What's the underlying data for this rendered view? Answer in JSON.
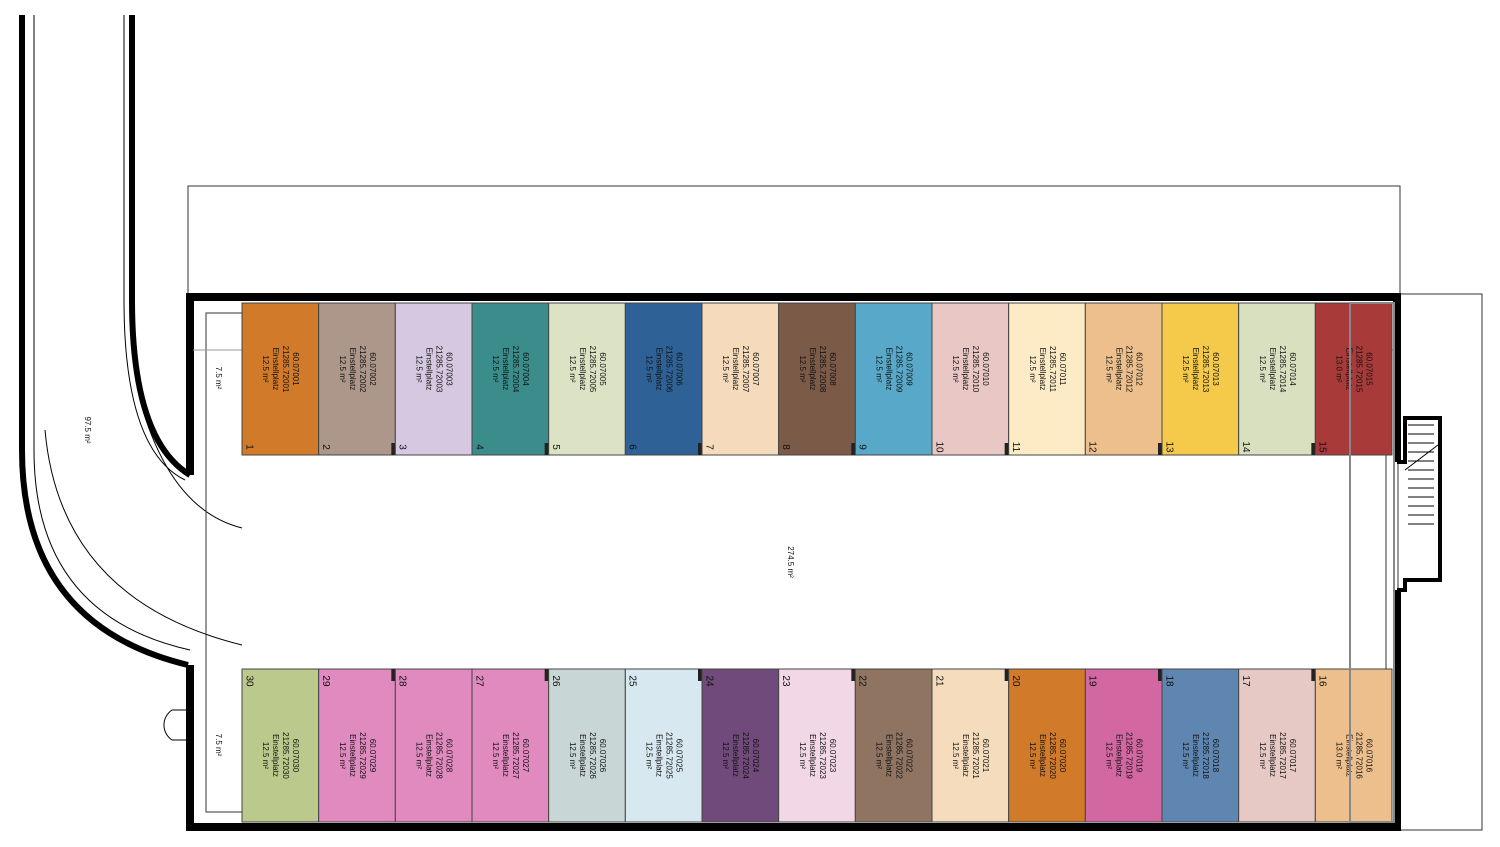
{
  "labels": {
    "ramp_area": "97.5 m²",
    "aisle_area": "274.5 m²",
    "stub_top_area": "7.5 m²",
    "stub_bottom_area": "7.5 m²"
  },
  "top_row": [
    {
      "number": "1",
      "id": "60.07001",
      "register": "21285.72001",
      "type": "Einstellplatz",
      "area": "12.5 m²",
      "color": "#d07a2a"
    },
    {
      "number": "2",
      "id": "60.07002",
      "register": "21285.72002",
      "type": "Einstellplatz",
      "area": "12.5 m²",
      "color": "#ad968a"
    },
    {
      "number": "3",
      "id": "60.07003",
      "register": "21285.72003",
      "type": "Einstellplatz",
      "area": "12.5 m²",
      "color": "#d6c8e0"
    },
    {
      "number": "4",
      "id": "60.07004",
      "register": "21285.72004",
      "type": "Einstellplatz",
      "area": "12.5 m²",
      "color": "#3a8d8b"
    },
    {
      "number": "5",
      "id": "60.07005",
      "register": "21285.72005",
      "type": "Einstellplatz",
      "area": "12.5 m²",
      "color": "#dce3c4"
    },
    {
      "number": "6",
      "id": "60.07006",
      "register": "21285.72006",
      "type": "Einstellplatz",
      "area": "12.5 m²",
      "color": "#2e6296"
    },
    {
      "number": "7",
      "id": "60.07007",
      "register": "21285.72007",
      "type": "Einstellplatz",
      "area": "12.5 m²",
      "color": "#f5dbbc"
    },
    {
      "number": "8",
      "id": "60.07008",
      "register": "21285.72008",
      "type": "Einstellplatz",
      "area": "12.5 m²",
      "color": "#7b5a47"
    },
    {
      "number": "9",
      "id": "60.07009",
      "register": "21285.72009",
      "type": "Einstellplatz",
      "area": "12.5 m²",
      "color": "#58a9c9"
    },
    {
      "number": "10",
      "id": "60.07010",
      "register": "21285.72010",
      "type": "Einstellplatz",
      "area": "12.5 m²",
      "color": "#e8c7c4"
    },
    {
      "number": "11",
      "id": "60.07011",
      "register": "21285.72011",
      "type": "Einstellplatz",
      "area": "12.5 m²",
      "color": "#fdebc6"
    },
    {
      "number": "12",
      "id": "60.07012",
      "register": "21285.72012",
      "type": "Einstellplatz",
      "area": "12.5 m²",
      "color": "#ecbf8c"
    },
    {
      "number": "13",
      "id": "60.07013",
      "register": "21285.72013",
      "type": "Einstellplatz",
      "area": "12.5 m²",
      "color": "#f5c94a"
    },
    {
      "number": "14",
      "id": "60.07014",
      "register": "21285.72014",
      "type": "Einstellplatz",
      "area": "12.5 m²",
      "color": "#d8e0c0"
    },
    {
      "number": "15",
      "id": "60.07015",
      "register": "21285.72015",
      "type": "Einstellplatz",
      "area": "13.0 m²",
      "color": "#a83a3a"
    }
  ],
  "bottom_row": [
    {
      "number": "30",
      "id": "60.07030",
      "register": "21285.72030",
      "type": "Einstellplatz",
      "area": "12.5 m²",
      "color": "#bcc98c"
    },
    {
      "number": "29",
      "id": "60.07029",
      "register": "21285.72029",
      "type": "Einstellplatz",
      "area": "12.5 m²",
      "color": "#e08ac0"
    },
    {
      "number": "28",
      "id": "60.07028",
      "register": "21285.72028",
      "type": "Einstellplatz",
      "area": "12.5 m²",
      "color": "#e08ac0"
    },
    {
      "number": "27",
      "id": "60.07027",
      "register": "21285.72027",
      "type": "Einstellplatz",
      "area": "12.5 m²",
      "color": "#e08ac0"
    },
    {
      "number": "26",
      "id": "60.07026",
      "register": "21285.72026",
      "type": "Einstellplatz",
      "area": "12.5 m²",
      "color": "#c8d6d6"
    },
    {
      "number": "25",
      "id": "60.07025",
      "register": "21285.72025",
      "type": "Einstellplatz",
      "area": "12.5 m²",
      "color": "#d8e8f0"
    },
    {
      "number": "24",
      "id": "60.07024",
      "register": "21285.72024",
      "type": "Einstellplatz",
      "area": "12.5 m²",
      "color": "#704a7a"
    },
    {
      "number": "23",
      "id": "60.07023",
      "register": "21285.72023",
      "type": "Einstellplatz",
      "area": "12.5 m²",
      "color": "#f2d8e6"
    },
    {
      "number": "22",
      "id": "60.07022",
      "register": "21285.72022",
      "type": "Einstellplatz",
      "area": "12.5 m²",
      "color": "#8f7462"
    },
    {
      "number": "21",
      "id": "60.07021",
      "register": "21285.72021",
      "type": "Einstellplatz",
      "area": "12.5 m²",
      "color": "#f5dcbc"
    },
    {
      "number": "20",
      "id": "60.07020",
      "register": "21285.72020",
      "type": "Einstellplatz",
      "area": "12.5 m²",
      "color": "#d07a2a"
    },
    {
      "number": "19",
      "id": "60.07019",
      "register": "21285.72019",
      "type": "Einstellplatz",
      "area": "12.5 m²",
      "color": "#d367a2"
    },
    {
      "number": "18",
      "id": "60.07018",
      "register": "21285.72018",
      "type": "Einstellplatz",
      "area": "12.5 m²",
      "color": "#5f86b0"
    },
    {
      "number": "17",
      "id": "60.07017",
      "register": "21285.72017",
      "type": "Einstellplatz",
      "area": "12.5 m²",
      "color": "#e6c8c4"
    },
    {
      "number": "16",
      "id": "60.07016",
      "register": "21285.72016",
      "type": "Einstellplatz",
      "area": "13.0 m²",
      "color": "#ecbf8c"
    }
  ]
}
